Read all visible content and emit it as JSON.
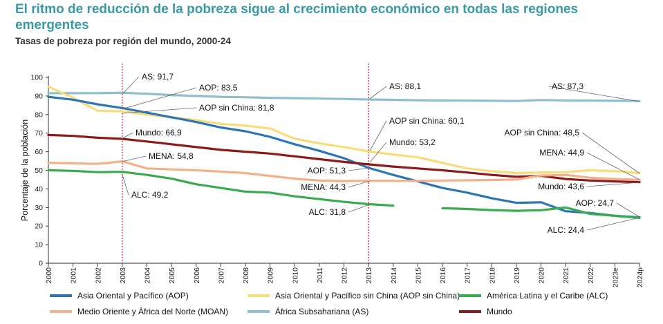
{
  "header": {
    "title": "El ritmo de reducción de la pobreza sigue al crecimiento económico en todas las regiones emergentes",
    "subtitle": "Tasas de pobreza por región del mundo, 2000-24"
  },
  "chart_data": {
    "type": "line",
    "ylabel": "Porcentaje de la población",
    "ylim": [
      0,
      100
    ],
    "yticks": [
      "0",
      "10",
      "20",
      "30",
      "40",
      "50",
      "60",
      "70",
      "80",
      "90",
      "100"
    ],
    "categories": [
      "2000",
      "2001",
      "2002",
      "2003",
      "2004",
      "2005",
      "2006",
      "2007",
      "2008",
      "2009",
      "2010",
      "2011",
      "2012",
      "2013",
      "2014",
      "2015",
      "2016",
      "2017",
      "2018",
      "2019",
      "2020",
      "2021",
      "2022",
      "2023e",
      "2024p"
    ],
    "vlines": [
      "2003",
      "2013"
    ],
    "series": [
      {
        "key": "as",
        "name": "África Subsahariana (AS)",
        "color": "#8fbfcc",
        "values": [
          91.5,
          91.5,
          91.5,
          91.7,
          91.2,
          90.5,
          90.0,
          89.5,
          89.3,
          89.0,
          88.8,
          88.6,
          88.4,
          88.1,
          87.9,
          87.7,
          87.6,
          87.5,
          87.4,
          87.3,
          87.8,
          87.6,
          87.5,
          87.4,
          87.3
        ]
      },
      {
        "key": "aop_sc",
        "name": "Asia Oriental y Pacífico sin China (AOP sin China)",
        "color": "#f7dc7a",
        "values": [
          95,
          89,
          82,
          81.8,
          80,
          78.5,
          77,
          75,
          74,
          72.5,
          67,
          64.5,
          62.5,
          60.1,
          58.5,
          57,
          54,
          51,
          49.5,
          48.5,
          48.8,
          49,
          50,
          49.5,
          48.5
        ]
      },
      {
        "key": "aop",
        "name": "Asia Oriental y Pacífico (AOP)",
        "color": "#2d74b5",
        "values": [
          89.5,
          88,
          85.5,
          83.5,
          81,
          78.5,
          76,
          73,
          71,
          68,
          64,
          60.5,
          56.5,
          51.3,
          47.5,
          44,
          40.5,
          38,
          35,
          32.5,
          32.8,
          28,
          27,
          25.5,
          24.7
        ]
      },
      {
        "key": "mundo",
        "name": "Mundo",
        "color": "#8b1a1a",
        "values": [
          69,
          68.5,
          67.5,
          66.9,
          65.5,
          64,
          62.5,
          61,
          60,
          59,
          57.5,
          56,
          54.5,
          53.2,
          52,
          51,
          50,
          48.8,
          47.5,
          46.5,
          47,
          45.3,
          44.5,
          44,
          43.6
        ]
      },
      {
        "key": "moan",
        "name": "Medio Oriente y África del Norte (MOAN)",
        "color": "#f5b08a",
        "values": [
          54,
          53.7,
          53.5,
          54.8,
          51,
          50.5,
          50,
          49.3,
          48.5,
          47,
          45.5,
          44.5,
          44.2,
          44.3,
          44.3,
          44.3,
          44.5,
          44.6,
          44.8,
          45,
          47.2,
          47.5,
          46,
          45.3,
          44.9
        ]
      },
      {
        "key": "alc",
        "name": "América Latina y el Caribe (ALC)",
        "color": "#3aaa4f",
        "values": [
          50,
          49.7,
          49,
          49.2,
          47.5,
          45.5,
          42.5,
          40.5,
          38.5,
          38,
          36,
          34.5,
          33,
          31.8,
          31,
          null,
          29.6,
          29.2,
          28.6,
          28.2,
          28.5,
          30,
          26.5,
          25.5,
          24.4
        ]
      }
    ],
    "annotations": [
      {
        "text": "AS: 91,7"
      },
      {
        "text": "AOP: 83,5"
      },
      {
        "text": "AOP sin China: 81,8"
      },
      {
        "text": "Mundo: 66,9"
      },
      {
        "text": "MENA: 54,8"
      },
      {
        "text": "ALC: 49,2"
      },
      {
        "text": "AS: 88,1"
      },
      {
        "text": "AOP sin China: 60,1"
      },
      {
        "text": "Mundo: 53,2"
      },
      {
        "text": "AOP: 51,3"
      },
      {
        "text": "MENA: 44,3"
      },
      {
        "text": "ALC: 31,8"
      },
      {
        "text": "AS: 87,3"
      },
      {
        "text": "AOP sin China: 48,5"
      },
      {
        "text": "MENA: 44,9"
      },
      {
        "text": "Mundo: 43,6"
      },
      {
        "text": "AOP: 24,7"
      },
      {
        "text": "ALC: 24,4"
      }
    ],
    "legend": [
      {
        "label": "Asia Oriental y Pacífico (AOP)",
        "color": "#2d74b5"
      },
      {
        "label": "Asia Oriental y Pacífico sin China (AOP sin China)",
        "color": "#f7dc7a"
      },
      {
        "label": "América Latina y el Caribe (ALC)",
        "color": "#3aaa4f"
      },
      {
        "label": "Medio Oriente y África del Norte (MOAN)",
        "color": "#f5b08a"
      },
      {
        "label": "África Subsahariana (AS)",
        "color": "#8fbfcc"
      },
      {
        "label": "Mundo",
        "color": "#8b1a1a"
      }
    ]
  }
}
